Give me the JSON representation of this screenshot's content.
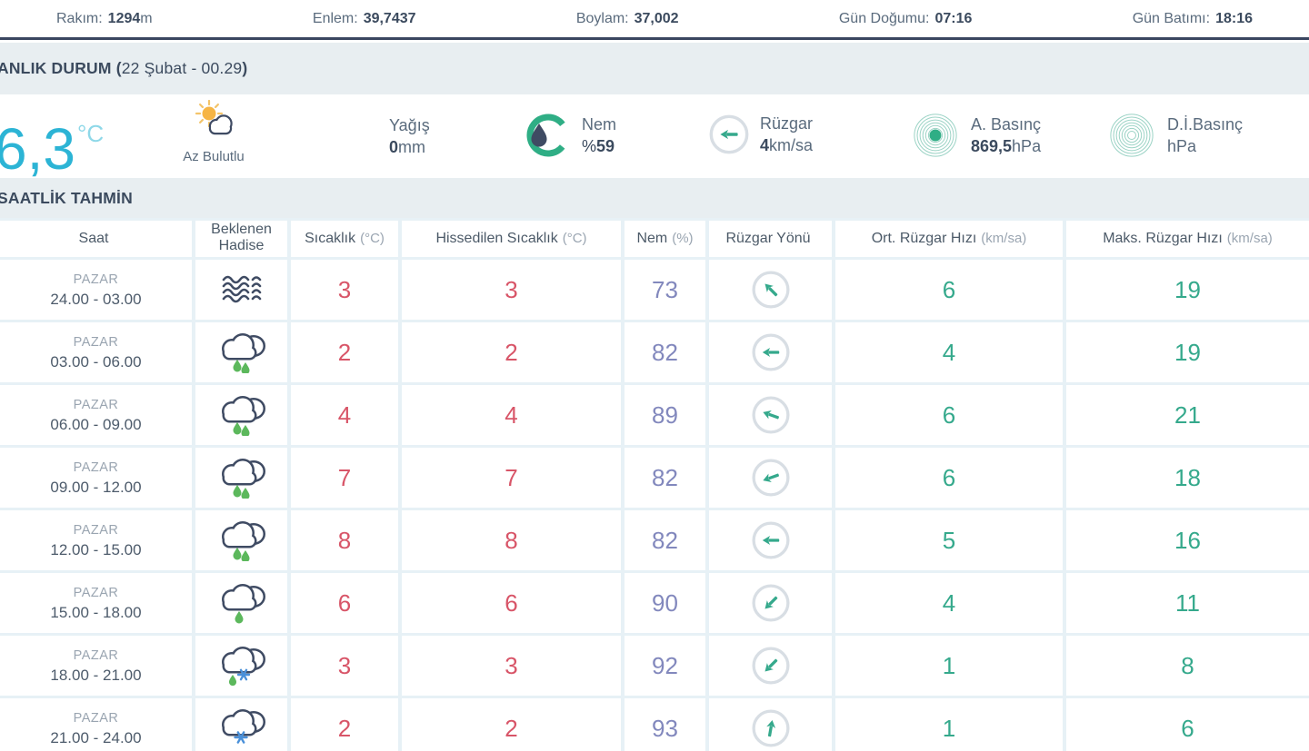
{
  "topbar": {
    "items": [
      {
        "label": "Rakım:",
        "value": "1294",
        "unit": "m"
      },
      {
        "label": "Enlem:",
        "value": "39,7437",
        "unit": ""
      },
      {
        "label": "Boylam:",
        "value": "37,002",
        "unit": ""
      },
      {
        "label": "Gün Doğumu:",
        "value": "07:16",
        "unit": ""
      },
      {
        "label": "Gün Batımı:",
        "value": "18:16",
        "unit": ""
      }
    ]
  },
  "current": {
    "title_prefix": "ANLIK DURUM (",
    "title_date": "22 Şubat - 00.29",
    "title_suffix": ")",
    "temperature": "6,3",
    "temperature_unit": "°C",
    "condition": "Az Bulutlu",
    "condition_icon": "sun-cloud",
    "metrics": [
      {
        "icon": "",
        "label": "Yağış",
        "value_prefix": "",
        "value": "0",
        "unit": "mm"
      },
      {
        "icon": "humidity-gauge",
        "label": "Nem",
        "value_prefix": "%",
        "value": "59",
        "unit": ""
      },
      {
        "icon": "wind-circle",
        "label": "Rüzgar",
        "value_prefix": "",
        "value": "4",
        "unit": "km/sa"
      },
      {
        "icon": "pressure-dot",
        "label": "A. Basınç",
        "value_prefix": "",
        "value": "869,5",
        "unit": "hPa"
      },
      {
        "icon": "pressure-rings",
        "label": "D.İ.Basınç",
        "value_prefix": "",
        "value": "",
        "unit": "hPa"
      }
    ],
    "current_wind_dir_deg": 180
  },
  "hourly": {
    "title": "SAATLİK TAHMİN",
    "columns": [
      {
        "label": "Saat",
        "unit": ""
      },
      {
        "label": "Beklenen Hadise",
        "unit": ""
      },
      {
        "label": "Sıcaklık",
        "unit": "(°C)"
      },
      {
        "label": "Hissedilen Sıcaklık",
        "unit": "(°C)"
      },
      {
        "label": "Nem",
        "unit": "(%)"
      },
      {
        "label": "Rüzgar Yönü",
        "unit": ""
      },
      {
        "label": "Ort. Rüzgar Hızı",
        "unit": "(km/sa)"
      },
      {
        "label": "Maks. Rüzgar Hızı",
        "unit": "(km/sa)"
      }
    ],
    "rows": [
      {
        "day": "PAZAR",
        "time": "24.00 - 03.00",
        "icon": "fog",
        "temp": "3",
        "feels": "3",
        "humidity": "73",
        "wind_dir_deg": -135,
        "avg_wind": "6",
        "max_wind": "19"
      },
      {
        "day": "PAZAR",
        "time": "03.00 - 06.00",
        "icon": "cloud-rain-2",
        "temp": "2",
        "feels": "2",
        "humidity": "82",
        "wind_dir_deg": 180,
        "avg_wind": "4",
        "max_wind": "19"
      },
      {
        "day": "PAZAR",
        "time": "06.00 - 09.00",
        "icon": "cloud-rain-2",
        "temp": "4",
        "feels": "4",
        "humidity": "89",
        "wind_dir_deg": -160,
        "avg_wind": "6",
        "max_wind": "21"
      },
      {
        "day": "PAZAR",
        "time": "09.00 - 12.00",
        "icon": "cloud-rain-2",
        "temp": "7",
        "feels": "7",
        "humidity": "82",
        "wind_dir_deg": 160,
        "avg_wind": "6",
        "max_wind": "18"
      },
      {
        "day": "PAZAR",
        "time": "12.00 - 15.00",
        "icon": "cloud-rain-2",
        "temp": "8",
        "feels": "8",
        "humidity": "82",
        "wind_dir_deg": 180,
        "avg_wind": "5",
        "max_wind": "16"
      },
      {
        "day": "PAZAR",
        "time": "15.00 - 18.00",
        "icon": "cloud-rain-1",
        "temp": "6",
        "feels": "6",
        "humidity": "90",
        "wind_dir_deg": 135,
        "avg_wind": "4",
        "max_wind": "11"
      },
      {
        "day": "PAZAR",
        "time": "18.00 - 21.00",
        "icon": "cloud-sleet",
        "temp": "3",
        "feels": "3",
        "humidity": "92",
        "wind_dir_deg": 135,
        "avg_wind": "1",
        "max_wind": "8"
      },
      {
        "day": "PAZAR",
        "time": "21.00 - 24.00",
        "icon": "cloud-snow",
        "temp": "2",
        "feels": "2",
        "humidity": "93",
        "wind_dir_deg": -80,
        "avg_wind": "1",
        "max_wind": "6"
      }
    ]
  },
  "colors": {
    "navy": "#3b4a5e",
    "gray_label": "#5a6b7d",
    "cyan_temp": "#2cb4d5",
    "red_temp": "#d85568",
    "purple_humidity": "#8288bd",
    "teal_wind": "#35a98c",
    "green_rain": "#5cb85c",
    "blue_snow": "#4a90d9",
    "sun_yellow": "#f6b545",
    "band_bg": "#e8eef1",
    "table_gap": "#e7f1f6"
  }
}
